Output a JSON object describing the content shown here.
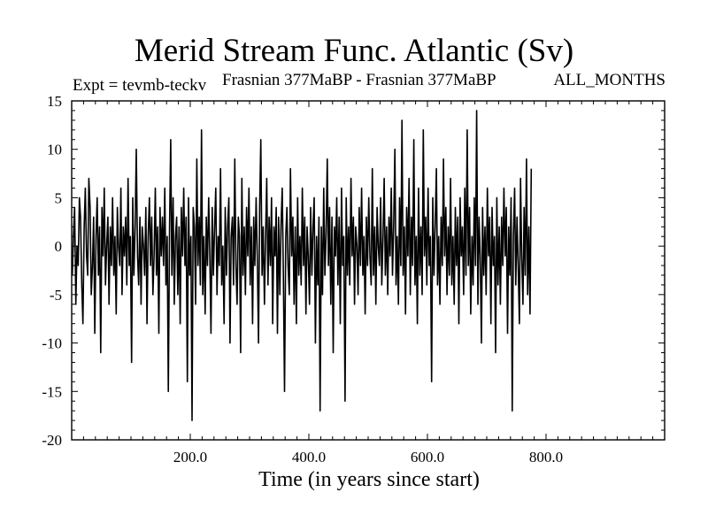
{
  "chart_data": {
    "type": "line",
    "title": "Merid Stream Func. Atlantic (Sv)",
    "subtitle_left": "Expt = tevmb-teckv",
    "subtitle_center": "Frasnian 377MaBP - Frasnian 377MaBP",
    "subtitle_right": "ALL_MONTHS",
    "xlabel": "Time (in years since start)",
    "ylabel": "",
    "xlim": [
      0,
      1000
    ],
    "ylim": [
      -20,
      15
    ],
    "x_ticks": [
      200,
      400,
      600,
      800
    ],
    "x_tick_labels": [
      "200.0",
      "400.0",
      "600.0",
      "800.0"
    ],
    "y_ticks": [
      -20,
      -15,
      -10,
      -5,
      0,
      5,
      10,
      15
    ],
    "y_tick_labels": [
      "-20",
      "-15",
      "-10",
      "-5",
      "0",
      "5",
      "10",
      "15"
    ],
    "grid": false,
    "series": [
      {
        "color": "#000000",
        "x_start": 1,
        "x_step": 2,
        "values": [
          -3,
          1,
          4,
          -6,
          0,
          -2,
          5,
          3,
          -4,
          -8,
          2,
          6,
          -1,
          -3,
          7,
          4,
          -5,
          -2,
          3,
          -9,
          1,
          5,
          -3,
          2,
          -11,
          4,
          -1,
          6,
          -4,
          0,
          3,
          -6,
          2,
          -2,
          5,
          -3,
          1,
          -7,
          4,
          0,
          -2,
          6,
          -5,
          2,
          -1,
          3,
          -4,
          7,
          -2,
          1,
          -12,
          5,
          -3,
          2,
          10,
          -1,
          -4,
          3,
          -6,
          2,
          0,
          -3,
          4,
          -8,
          1,
          5,
          -2,
          3,
          -5,
          -1,
          6,
          -3,
          2,
          -9,
          4,
          -1,
          3,
          -2,
          6,
          -4,
          1,
          -15,
          2,
          11,
          -3,
          5,
          -6,
          1,
          3,
          -5,
          2,
          -8,
          4,
          -1,
          6,
          -2,
          3,
          -14,
          5,
          -3,
          1,
          -18,
          4,
          2,
          -6,
          9,
          -2,
          3,
          -4,
          12,
          -5,
          1,
          -7,
          3,
          -2,
          5,
          -1,
          -9,
          4,
          -3,
          2,
          6,
          -5,
          1,
          -2,
          8,
          -4,
          0,
          -8,
          4,
          -3,
          2,
          5,
          -10,
          1,
          3,
          -4,
          9,
          -2,
          -6,
          3,
          1,
          -11,
          7,
          -3,
          2,
          -5,
          4,
          -1,
          6,
          -4,
          2,
          -8,
          3,
          -2,
          5,
          -1,
          -10,
          4,
          11,
          -3,
          2,
          -6,
          1,
          7,
          -4,
          3,
          -2,
          5,
          -8,
          2,
          -1,
          4,
          -9,
          3,
          -5,
          2,
          6,
          -3,
          -15,
          1,
          4,
          -2,
          -5,
          8,
          -1,
          3,
          -6,
          2,
          -8,
          5,
          -3,
          1,
          -4,
          6,
          -2,
          3,
          -7,
          2,
          -1,
          -6,
          4,
          -3,
          2,
          5,
          -10,
          1,
          -4,
          3,
          -17,
          2,
          -5,
          6,
          -3,
          1,
          9,
          -2,
          4,
          -6,
          3,
          -11,
          2,
          -1,
          5,
          -4,
          3,
          -8,
          6,
          -2,
          1,
          -16,
          5,
          -3,
          2,
          -4,
          7,
          -1,
          3,
          -6,
          2,
          0,
          -5,
          4,
          -2,
          6,
          -3,
          1,
          -7,
          3,
          -2,
          5,
          -1,
          -4,
          8,
          -3,
          2,
          -6,
          4,
          0,
          -2,
          5,
          -4,
          1,
          7,
          -3,
          2,
          -5,
          3,
          -1,
          6,
          -3,
          2,
          10,
          -4,
          1,
          -6,
          5,
          -2,
          13,
          -3,
          2,
          -7,
          4,
          -1,
          7,
          -5,
          3,
          -2,
          11,
          -4,
          1,
          -8,
          6,
          -3,
          2,
          -5,
          12,
          -1,
          3,
          -4,
          6,
          -2,
          1,
          -14,
          5,
          -3,
          2,
          8,
          -4,
          1,
          -6,
          3,
          -2,
          9,
          -1,
          4,
          -5,
          2,
          -3,
          7,
          -4,
          1,
          -6,
          4,
          -2,
          3,
          -8,
          5,
          -1,
          2,
          -5,
          6,
          -3,
          12,
          -2,
          4,
          -7,
          1,
          -4,
          5,
          -2,
          14,
          -6,
          3,
          -1,
          -10,
          4,
          -3,
          2,
          -5,
          6,
          -1,
          3,
          -8,
          4,
          -2,
          1,
          -11,
          5,
          -4,
          2,
          -6,
          3,
          -2,
          6,
          -1,
          4,
          -9,
          2,
          -3,
          5,
          -17,
          1,
          6,
          -4,
          3,
          -2,
          -8,
          7,
          -1,
          -6,
          4,
          -3,
          9,
          -5,
          2,
          -7,
          8
        ]
      }
    ]
  }
}
